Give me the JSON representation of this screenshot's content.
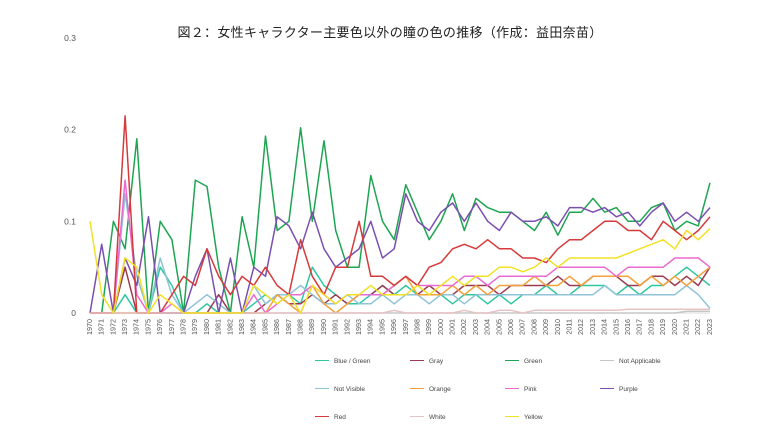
{
  "chart_data": {
    "type": "line",
    "title": "図２：女性キャラクター主要色以外の瞳の色の推移（作成：益田奈苗）",
    "xlabel": "",
    "ylabel": "",
    "ylim": [
      0,
      0.3
    ],
    "yticks": [
      "0",
      "0.1",
      "0.2",
      "0.3"
    ],
    "grid": false,
    "legend_position": "bottom",
    "x": [
      "1970",
      "1971",
      "1972",
      "1973",
      "1974",
      "1975",
      "1976",
      "1977",
      "1978",
      "1979",
      "1980",
      "1981",
      "1982",
      "1983",
      "1984",
      "1985",
      "1986",
      "1987",
      "1988",
      "1989",
      "1990",
      "1991",
      "1992",
      "1993",
      "1994",
      "1995",
      "1996",
      "1997",
      "1998",
      "1999",
      "2000",
      "2001",
      "2002",
      "2003",
      "2004",
      "2005",
      "2006",
      "2007",
      "2008",
      "2009",
      "2010",
      "2011",
      "2012",
      "2013",
      "2014",
      "2015",
      "2016",
      "2017",
      "2018",
      "2019",
      "2020",
      "2021",
      "2022",
      "2023"
    ],
    "series": [
      {
        "name": "Blue / Green",
        "color": "#2fc7a0",
        "values": [
          0,
          0,
          0,
          0.02,
          0,
          0,
          0.05,
          0.03,
          0,
          0,
          0.01,
          0,
          0,
          0,
          0.01,
          0.02,
          0.01,
          0.02,
          0.01,
          0.05,
          0.03,
          0.02,
          0.01,
          0.01,
          0.02,
          0.03,
          0.02,
          0.03,
          0.02,
          0.02,
          0.02,
          0.01,
          0.02,
          0.02,
          0.01,
          0.02,
          0.01,
          0.02,
          0.02,
          0.03,
          0.02,
          0.02,
          0.03,
          0.03,
          0.03,
          0.02,
          0.03,
          0.02,
          0.03,
          0.03,
          0.04,
          0.05,
          0.04,
          0.03
        ]
      },
      {
        "name": "Gray",
        "color": "#9b3b52",
        "values": [
          0,
          0,
          0,
          0.05,
          0,
          0,
          0,
          0,
          0,
          0,
          0,
          0.02,
          0,
          0,
          0,
          0.01,
          0.02,
          0.01,
          0.01,
          0.02,
          0.01,
          0.02,
          0.01,
          0.02,
          0.02,
          0.03,
          0.02,
          0.02,
          0.02,
          0.03,
          0.02,
          0.02,
          0.03,
          0.03,
          0.03,
          0.02,
          0.03,
          0.03,
          0.03,
          0.03,
          0.04,
          0.03,
          0.03,
          0.04,
          0.04,
          0.04,
          0.03,
          0.03,
          0.04,
          0.04,
          0.03,
          0.04,
          0.03,
          0.05
        ]
      },
      {
        "name": "Green",
        "color": "#1ea552",
        "values": [
          0,
          0,
          0.1,
          0.07,
          0.19,
          0,
          0.1,
          0.08,
          0,
          0.145,
          0.138,
          0.05,
          0,
          0.105,
          0.05,
          0.193,
          0.09,
          0.1,
          0.202,
          0.1,
          0.188,
          0.09,
          0.05,
          0.05,
          0.15,
          0.1,
          0.08,
          0.14,
          0.11,
          0.08,
          0.1,
          0.13,
          0.09,
          0.125,
          0.115,
          0.11,
          0.11,
          0.1,
          0.09,
          0.11,
          0.085,
          0.11,
          0.11,
          0.125,
          0.11,
          0.115,
          0.1,
          0.1,
          0.115,
          0.12,
          0.09,
          0.1,
          0.095,
          0.142
        ]
      },
      {
        "name": "Not Applicable",
        "color": "#c7c7c7",
        "values": [
          0,
          0,
          0,
          0,
          0,
          0,
          0,
          0,
          0,
          0,
          0,
          0,
          0,
          0,
          0,
          0,
          0,
          0,
          0,
          0,
          0,
          0,
          0,
          0,
          0,
          0,
          0,
          0,
          0,
          0,
          0,
          0,
          0,
          0,
          0,
          0,
          0,
          0,
          0,
          0,
          0,
          0,
          0,
          0,
          0,
          0,
          0,
          0,
          0,
          0,
          0,
          0.002,
          0.002,
          0.002
        ]
      },
      {
        "name": "Not Visible",
        "color": "#8fc3d8",
        "values": [
          0,
          0,
          0,
          0.13,
          0.04,
          0,
          0.06,
          0.02,
          0,
          0.01,
          0.02,
          0.01,
          0,
          0,
          0.03,
          0.01,
          0.02,
          0.02,
          0.03,
          0.02,
          0.01,
          0.01,
          0.02,
          0.01,
          0.01,
          0.02,
          0.01,
          0.02,
          0.02,
          0.01,
          0.02,
          0.02,
          0.01,
          0.02,
          0.02,
          0.02,
          0.02,
          0.02,
          0.02,
          0.02,
          0.02,
          0.02,
          0.02,
          0.02,
          0.03,
          0.02,
          0.02,
          0.02,
          0.02,
          0.02,
          0.02,
          0.03,
          0.02,
          0.005
        ]
      },
      {
        "name": "Orange",
        "color": "#f2a23a",
        "values": [
          0,
          0,
          0,
          0,
          0,
          0,
          0,
          0,
          0,
          0,
          0,
          0,
          0,
          0,
          0,
          0,
          0.02,
          0.01,
          0,
          0.03,
          0.01,
          0,
          0.01,
          0.02,
          0.02,
          0.02,
          0.03,
          0.04,
          0.02,
          0.02,
          0.02,
          0.03,
          0.02,
          0.03,
          0.02,
          0.03,
          0.03,
          0.03,
          0.04,
          0.03,
          0.03,
          0.04,
          0.03,
          0.04,
          0.04,
          0.04,
          0.04,
          0.03,
          0.04,
          0.03,
          0.04,
          0.03,
          0.04,
          0.05
        ]
      },
      {
        "name": "Pink",
        "color": "#ea6ad3",
        "values": [
          0,
          0,
          0,
          0.145,
          0.02,
          0,
          0,
          0.01,
          0,
          0,
          0,
          0,
          0,
          0,
          0.02,
          0,
          0.01,
          0.02,
          0.02,
          0.03,
          0.02,
          0.01,
          0.02,
          0.02,
          0.02,
          0.02,
          0.03,
          0.04,
          0.03,
          0.03,
          0.03,
          0.03,
          0.04,
          0.04,
          0.03,
          0.04,
          0.04,
          0.04,
          0.04,
          0.04,
          0.05,
          0.05,
          0.05,
          0.05,
          0.05,
          0.04,
          0.05,
          0.05,
          0.05,
          0.05,
          0.06,
          0.06,
          0.06,
          0.05
        ]
      },
      {
        "name": "Purple",
        "color": "#7b4fb0",
        "values": [
          0,
          0.075,
          0,
          0.06,
          0.03,
          0.105,
          0,
          0,
          0,
          0.04,
          0.07,
          0,
          0.06,
          0,
          0.05,
          0.04,
          0.105,
          0.095,
          0.07,
          0.11,
          0.07,
          0.05,
          0.06,
          0.07,
          0.1,
          0.06,
          0.07,
          0.13,
          0.1,
          0.09,
          0.11,
          0.12,
          0.1,
          0.12,
          0.1,
          0.09,
          0.11,
          0.1,
          0.1,
          0.105,
          0.095,
          0.115,
          0.115,
          0.11,
          0.115,
          0.105,
          0.11,
          0.095,
          0.11,
          0.12,
          0.1,
          0.11,
          0.1,
          0.115
        ]
      },
      {
        "name": "Red",
        "color": "#d63a3a",
        "values": [
          0,
          0,
          0,
          0.215,
          0,
          0,
          0,
          0.02,
          0.04,
          0.03,
          0.07,
          0.04,
          0.02,
          0.04,
          0.03,
          0.05,
          0.03,
          0.02,
          0.08,
          0.04,
          0.02,
          0.05,
          0.05,
          0.1,
          0.04,
          0.04,
          0.03,
          0.04,
          0.03,
          0.05,
          0.055,
          0.07,
          0.075,
          0.07,
          0.08,
          0.07,
          0.07,
          0.06,
          0.06,
          0.055,
          0.07,
          0.08,
          0.08,
          0.09,
          0.1,
          0.1,
          0.09,
          0.09,
          0.08,
          0.1,
          0.09,
          0.08,
          0.09,
          0.105
        ]
      },
      {
        "name": "White",
        "color": "#e6c3c3",
        "values": [
          0,
          0,
          0,
          0,
          0,
          0,
          0,
          0,
          0,
          0,
          0,
          0,
          0,
          0,
          0,
          0,
          0,
          0,
          0,
          0,
          0,
          0,
          0,
          0,
          0,
          0,
          0.003,
          0,
          0,
          0,
          0,
          0,
          0.003,
          0,
          0,
          0.003,
          0.003,
          0,
          0.003,
          0.003,
          0.003,
          0.003,
          0.003,
          0.003,
          0.003,
          0.003,
          0.004,
          0.004,
          0.004,
          0.004,
          0.004,
          0.004,
          0.004,
          0.004
        ]
      },
      {
        "name": "Yellow",
        "color": "#f2e226",
        "values": [
          0.1,
          0.02,
          0,
          0.06,
          0.05,
          0,
          0.02,
          0.01,
          0,
          0,
          0,
          0,
          0,
          0,
          0.03,
          0.02,
          0.01,
          0.02,
          0,
          0.03,
          0.02,
          0.01,
          0.02,
          0.02,
          0.03,
          0.02,
          0.02,
          0.02,
          0.03,
          0.02,
          0.03,
          0.04,
          0.03,
          0.04,
          0.04,
          0.05,
          0.05,
          0.045,
          0.05,
          0.06,
          0.05,
          0.06,
          0.06,
          0.06,
          0.06,
          0.06,
          0.065,
          0.07,
          0.075,
          0.08,
          0.07,
          0.09,
          0.08,
          0.092
        ]
      }
    ]
  }
}
